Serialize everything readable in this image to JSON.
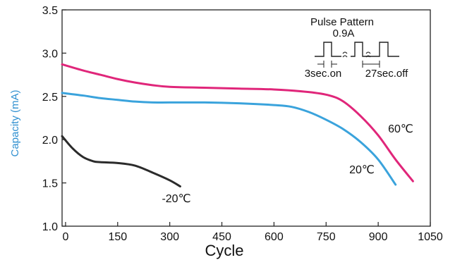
{
  "chart_data": {
    "type": "line",
    "xlabel": "Cycle",
    "ylabel": "Capacity (mA)",
    "xlim": [
      -10,
      1050
    ],
    "ylim": [
      1.0,
      3.5
    ],
    "xticks": [
      "0",
      "150",
      "300",
      "450",
      "600",
      "750",
      "900",
      "1050"
    ],
    "yticks": [
      "1.0",
      "1.5",
      "2.0",
      "2.5",
      "3.0",
      "3.5"
    ],
    "grid": false,
    "series": [
      {
        "name": "60℃",
        "color": "#e0267a",
        "x": [
          -10,
          50,
          100,
          150,
          200,
          250,
          300,
          400,
          500,
          600,
          700,
          760,
          800,
          850,
          900,
          950,
          1000
        ],
        "y": [
          2.87,
          2.8,
          2.75,
          2.7,
          2.66,
          2.63,
          2.61,
          2.6,
          2.59,
          2.58,
          2.55,
          2.51,
          2.44,
          2.27,
          2.05,
          1.77,
          1.52
        ]
      },
      {
        "name": "20℃",
        "color": "#3aa3dc",
        "x": [
          -10,
          50,
          100,
          150,
          200,
          250,
          300,
          400,
          500,
          600,
          650,
          700,
          750,
          800,
          850,
          900,
          950
        ],
        "y": [
          2.54,
          2.51,
          2.48,
          2.46,
          2.44,
          2.43,
          2.43,
          2.43,
          2.42,
          2.4,
          2.38,
          2.32,
          2.23,
          2.12,
          1.97,
          1.77,
          1.48
        ]
      },
      {
        "name": "-20℃",
        "color": "#2b2b2b",
        "x": [
          -10,
          20,
          50,
          80,
          100,
          150,
          200,
          250,
          300,
          330
        ],
        "y": [
          2.04,
          1.9,
          1.8,
          1.75,
          1.74,
          1.73,
          1.7,
          1.62,
          1.53,
          1.46
        ]
      }
    ],
    "annotations": {
      "inset_title": "Pulse Pattern",
      "inset_current": "0.9A",
      "inset_on": "3sec.on",
      "inset_off": "27sec.off"
    }
  }
}
